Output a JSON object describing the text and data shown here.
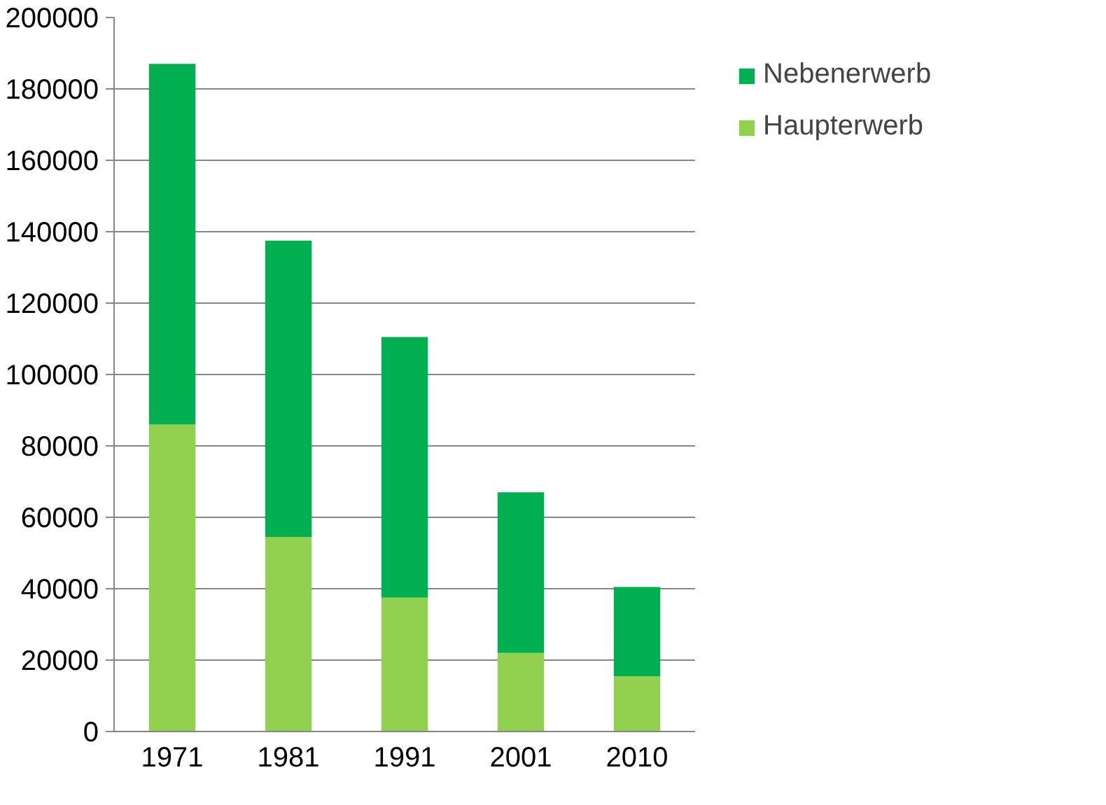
{
  "chart_data": {
    "type": "bar",
    "stacked": true,
    "categories": [
      "1971",
      "1981",
      "1991",
      "2001",
      "2010"
    ],
    "series": [
      {
        "name": "Haupterwerb",
        "color": "#92d050",
        "values": [
          86000,
          54500,
          37500,
          22000,
          15500
        ]
      },
      {
        "name": "Nebenerwerb",
        "color": "#00b050",
        "values": [
          101000,
          83000,
          73000,
          45000,
          25000
        ]
      }
    ],
    "ylim": [
      0,
      200000
    ],
    "yticks": [
      0,
      20000,
      40000,
      60000,
      80000,
      100000,
      120000,
      140000,
      160000,
      180000,
      200000
    ],
    "grid": "y",
    "legend": "right"
  }
}
